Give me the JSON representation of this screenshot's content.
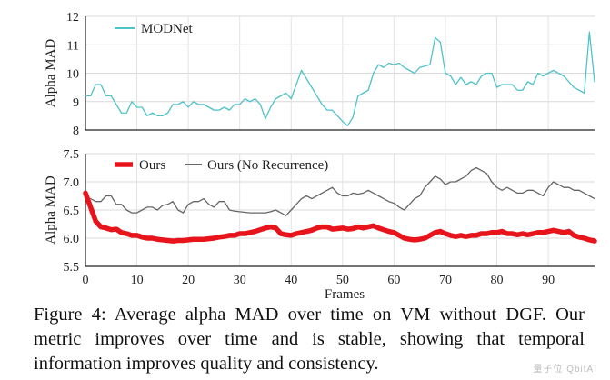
{
  "caption": "Figure 4: Average alpha MAD over time on VM without DGF. Our metric improves over time and is stable, showing that temporal information improves quality and consistency.",
  "watermark": "量子位 QbitAI",
  "chart_data": [
    {
      "type": "line",
      "ylabel": "Alpha MAD",
      "xlabel": "",
      "ylim": [
        8,
        12
      ],
      "yticks": [
        8,
        9,
        10,
        11,
        12
      ],
      "xlim": [
        0,
        99
      ],
      "grid": true,
      "legend_position": "top-left",
      "series": [
        {
          "name": "MODNet",
          "color": "#4fc3c9",
          "x_start": 0,
          "values": [
            9.2,
            9.2,
            9.6,
            9.6,
            9.2,
            9.2,
            8.9,
            8.6,
            8.6,
            9.0,
            8.8,
            8.8,
            8.5,
            8.6,
            8.5,
            8.5,
            8.6,
            8.9,
            8.9,
            9.0,
            8.8,
            9.0,
            8.9,
            8.9,
            8.8,
            8.7,
            8.7,
            8.8,
            8.7,
            8.9,
            8.9,
            9.1,
            9.0,
            9.1,
            8.9,
            8.4,
            8.8,
            9.1,
            9.2,
            9.3,
            9.1,
            9.6,
            10.1,
            9.8,
            9.5,
            9.2,
            8.9,
            8.7,
            8.7,
            8.5,
            8.3,
            8.15,
            8.45,
            9.2,
            9.3,
            9.4,
            10.0,
            10.3,
            10.2,
            10.35,
            10.3,
            10.35,
            10.2,
            10.1,
            10.0,
            10.2,
            10.25,
            10.3,
            11.25,
            11.1,
            10.0,
            9.9,
            9.6,
            9.85,
            9.6,
            9.7,
            9.6,
            9.9,
            10.0,
            10.0,
            9.5,
            9.6,
            9.6,
            9.6,
            9.4,
            9.4,
            9.7,
            9.6,
            10.0,
            9.9,
            10.0,
            10.1,
            10.0,
            9.9,
            9.7,
            9.5,
            9.4,
            9.3,
            11.45,
            9.7
          ]
        }
      ]
    },
    {
      "type": "line",
      "ylabel": "Alpha MAD",
      "xlabel": "Frames",
      "ylim": [
        5.5,
        7.5
      ],
      "yticks": [
        5.5,
        6.0,
        6.5,
        7.0,
        7.5
      ],
      "xlim": [
        0,
        99
      ],
      "xticks": [
        0,
        10,
        20,
        30,
        40,
        50,
        60,
        70,
        80,
        90
      ],
      "grid": true,
      "legend_position": "top",
      "series": [
        {
          "name": "Ours",
          "color": "#e8141c",
          "x_start": 0,
          "values": [
            6.8,
            6.55,
            6.3,
            6.2,
            6.18,
            6.15,
            6.16,
            6.1,
            6.08,
            6.05,
            6.05,
            6.02,
            6.0,
            6.0,
            5.98,
            5.97,
            5.96,
            5.95,
            5.96,
            5.96,
            5.97,
            5.98,
            5.98,
            5.98,
            5.99,
            6.0,
            6.02,
            6.03,
            6.05,
            6.05,
            6.08,
            6.08,
            6.1,
            6.12,
            6.15,
            6.18,
            6.2,
            6.18,
            6.08,
            6.06,
            6.05,
            6.08,
            6.1,
            6.12,
            6.14,
            6.18,
            6.2,
            6.2,
            6.16,
            6.17,
            6.18,
            6.16,
            6.17,
            6.2,
            6.18,
            6.2,
            6.22,
            6.18,
            6.15,
            6.12,
            6.1,
            6.05,
            6.0,
            5.98,
            5.97,
            5.98,
            6.0,
            6.05,
            6.1,
            6.12,
            6.08,
            6.05,
            6.03,
            6.05,
            6.03,
            6.05,
            6.05,
            6.08,
            6.08,
            6.1,
            6.1,
            6.12,
            6.08,
            6.08,
            6.06,
            6.08,
            6.06,
            6.08,
            6.1,
            6.1,
            6.12,
            6.14,
            6.12,
            6.1,
            6.12,
            6.05,
            6.02,
            6.0,
            5.97,
            5.95
          ]
        },
        {
          "name": "Ours (No Recurrence)",
          "color": "#666666",
          "x_start": 1,
          "values": [
            6.7,
            6.65,
            6.65,
            6.75,
            6.75,
            6.6,
            6.6,
            6.5,
            6.45,
            6.45,
            6.5,
            6.55,
            6.55,
            6.5,
            6.58,
            6.6,
            6.65,
            6.5,
            6.45,
            6.6,
            6.65,
            6.65,
            6.7,
            6.6,
            6.55,
            6.65,
            6.65,
            6.5,
            6.48,
            6.47,
            6.46,
            6.45,
            6.45,
            6.45,
            6.45,
            6.47,
            6.5,
            6.45,
            6.4,
            6.5,
            6.6,
            6.7,
            6.75,
            6.7,
            6.75,
            6.8,
            6.85,
            6.9,
            6.8,
            6.75,
            6.75,
            6.8,
            6.78,
            6.8,
            6.85,
            6.8,
            6.75,
            6.7,
            6.65,
            6.62,
            6.55,
            6.5,
            6.6,
            6.7,
            6.75,
            6.9,
            7.0,
            7.1,
            7.05,
            6.95,
            7.0,
            7.0,
            7.05,
            7.1,
            7.2,
            7.25,
            7.2,
            7.15,
            7.0,
            6.9,
            6.85,
            6.9,
            6.85,
            6.8,
            6.8,
            6.85,
            6.85,
            6.8,
            6.75,
            6.9,
            7.0,
            6.95,
            6.9,
            6.9,
            6.85,
            6.85,
            6.8,
            6.75,
            6.7
          ]
        }
      ]
    }
  ]
}
